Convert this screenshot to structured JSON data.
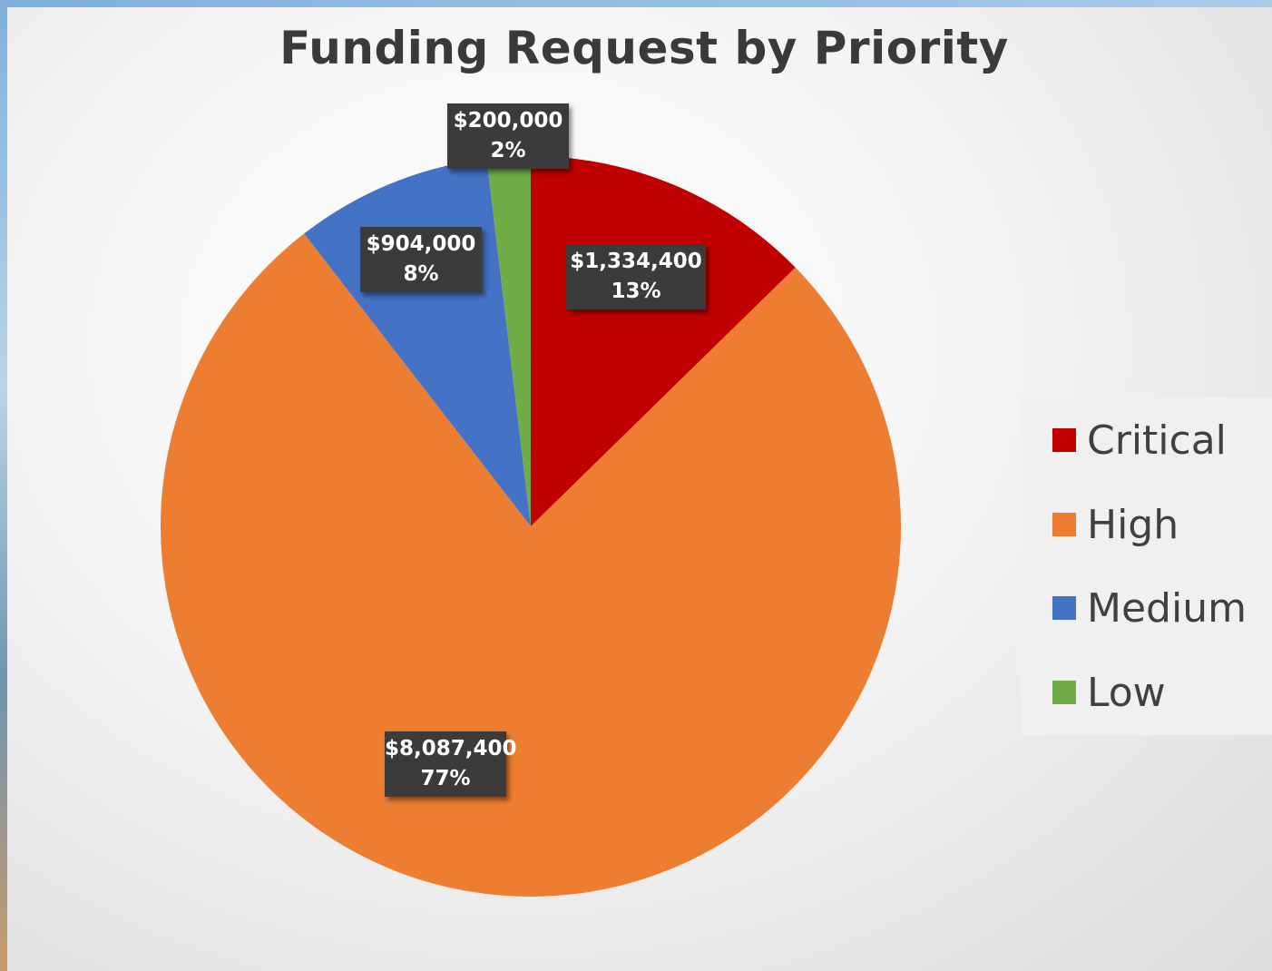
{
  "chart_data": {
    "type": "pie",
    "title": "Funding Request by Priority",
    "legend_position": "right",
    "slices": [
      {
        "name": "Critical",
        "value": 1334400,
        "value_label": "$1,334,400",
        "percent_label": "13%",
        "color": "#C00000"
      },
      {
        "name": "High",
        "value": 8087400,
        "value_label": "$8,087,400",
        "percent_label": "77%",
        "color": "#ED7D31"
      },
      {
        "name": "Medium",
        "value": 904000,
        "value_label": "$904,000",
        "percent_label": "8%",
        "color": "#4472C4"
      },
      {
        "name": "Low",
        "value": 200000,
        "value_label": "$200,000",
        "percent_label": "2%",
        "color": "#70AD47"
      }
    ]
  }
}
